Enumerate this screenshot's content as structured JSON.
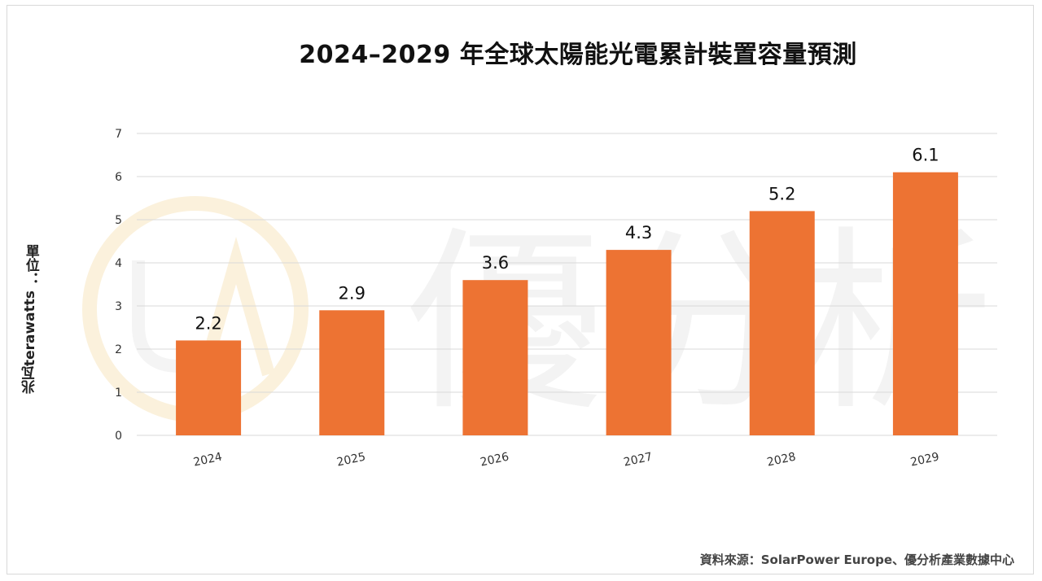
{
  "title": "2024–2029 年全球太陽能光電累計裝置容量預測",
  "ylabel": {
    "line1": "單位：",
    "line2": "兆瓦terawatts"
  },
  "source": "資料來源：SolarPower Europe、優分析產業數據中心",
  "watermark_text": "優分析",
  "colors": {
    "bar": "#ED7333",
    "grid": "#d9d9d9",
    "axis_text": "#333333",
    "label_text": "#111111"
  },
  "chart_data": {
    "type": "bar",
    "categories": [
      "2024",
      "2025",
      "2026",
      "2027",
      "2028",
      "2029"
    ],
    "values": [
      2.2,
      2.9,
      3.6,
      4.3,
      5.2,
      6.1
    ],
    "data_labels": [
      "2.2",
      "2.9",
      "3.6",
      "4.3",
      "5.2",
      "6.1"
    ],
    "title": "2024–2029 年全球太陽能光電累計裝置容量預測",
    "ylabel": "單位：兆瓦terawatts",
    "xlabel": "",
    "ylim": [
      0,
      7
    ],
    "yticks": [
      0,
      1,
      2,
      3,
      4,
      5,
      6,
      7
    ],
    "grid": true
  }
}
